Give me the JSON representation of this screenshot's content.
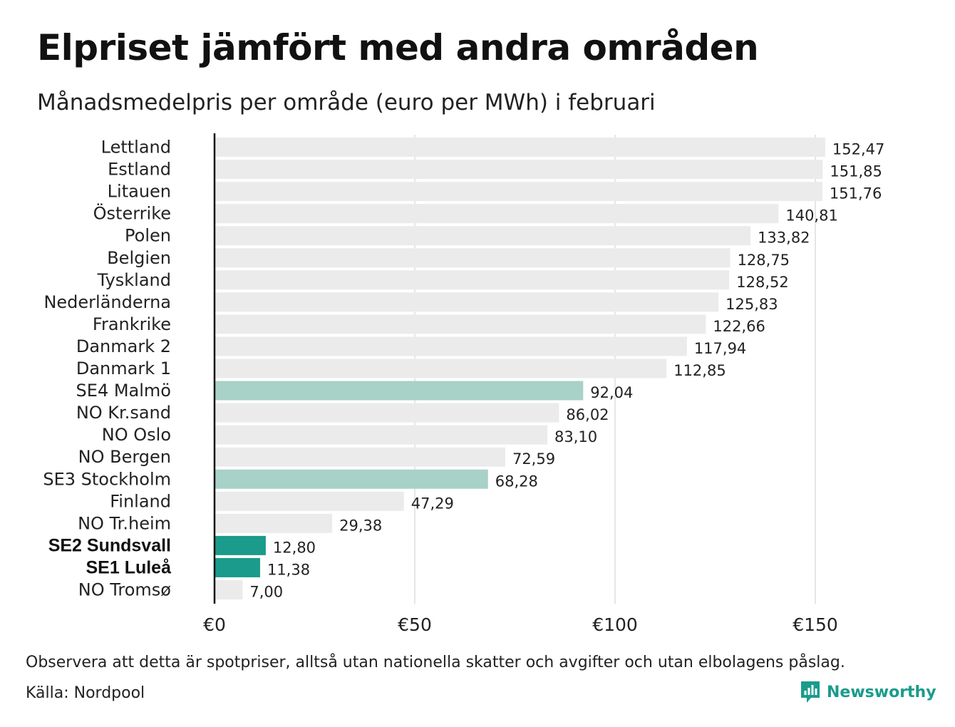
{
  "header": {
    "title": "Elpriset jämfört med andra områden",
    "subtitle": "Månadsmedelpris per område (euro per MWh) i februari"
  },
  "footer": {
    "note": "Observera att detta är spotpriser, alltså utan nationella skatter och avgifter och utan elbolagens påslag.",
    "source": "Källa: Nordpool",
    "brand": "Newsworthy",
    "brand_icon": "bar-chart-speech-bubble-icon"
  },
  "colors": {
    "default_bar": "#ebebeb",
    "se_light_bar": "#a8d1c8",
    "se_highlight_bar": "#1a9b8c",
    "axis": "#111111",
    "grid": "#cccccc"
  },
  "chart_data": {
    "type": "bar",
    "orientation": "horizontal",
    "title": "Elpriset jämfört med andra områden",
    "subtitle": "Månadsmedelpris per område (euro per MWh) i februari",
    "xlim": [
      0,
      160
    ],
    "x_ticks": [
      0,
      50,
      100,
      150
    ],
    "x_tick_labels": [
      "€0",
      "€50",
      "€100",
      "€150"
    ],
    "grid": "vertical",
    "categories": [
      "Lettland",
      "Estland",
      "Litauen",
      "Österrike",
      "Polen",
      "Belgien",
      "Tyskland",
      "Nederländerna",
      "Frankrike",
      "Danmark 2",
      "Danmark 1",
      "SE4 Malmö",
      "NO Kr.sand",
      "NO Oslo",
      "NO Bergen",
      "SE3 Stockholm",
      "Finland",
      "NO Tr.heim",
      "SE2 Sundsvall",
      "SE1 Luleå",
      "NO Tromsø"
    ],
    "values": [
      152.47,
      151.85,
      151.76,
      140.81,
      133.82,
      128.75,
      128.52,
      125.83,
      122.66,
      117.94,
      112.85,
      92.04,
      86.02,
      83.1,
      72.59,
      68.28,
      47.29,
      29.38,
      12.8,
      11.38,
      7.0
    ],
    "value_labels": [
      "152,47",
      "151,85",
      "151,76",
      "140,81",
      "133,82",
      "128,75",
      "128,52",
      "125,83",
      "122,66",
      "117,94",
      "112,85",
      "92,04",
      "86,02",
      "83,10",
      "72,59",
      "68,28",
      "47,29",
      "29,38",
      "12,80",
      "11,38",
      "7,00"
    ],
    "bar_styles": [
      "default",
      "default",
      "default",
      "default",
      "default",
      "default",
      "default",
      "default",
      "default",
      "default",
      "default",
      "se_light",
      "default",
      "default",
      "default",
      "se_light",
      "default",
      "default",
      "se_highlight",
      "se_highlight",
      "default"
    ]
  }
}
